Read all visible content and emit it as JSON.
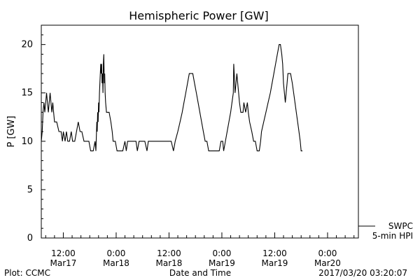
{
  "chart_data": {
    "type": "line",
    "title": "Hemispheric Power [GW]",
    "ylabel": "P [GW]",
    "xlabel": "Date and Time",
    "ylim": [
      0,
      22
    ],
    "xlim_hours": [
      -17,
      55
    ],
    "y_ticks": [
      {
        "value": 0,
        "label": "0"
      },
      {
        "value": 5,
        "label": "5"
      },
      {
        "value": 10,
        "label": "10"
      },
      {
        "value": 15,
        "label": "15"
      },
      {
        "value": 20,
        "label": "20"
      }
    ],
    "x_ticks": [
      {
        "hour": -12,
        "line1": "12:00",
        "line2": "Mar17"
      },
      {
        "hour": 0,
        "line1": "0:00",
        "line2": "Mar18"
      },
      {
        "hour": 12,
        "line1": "12:00",
        "line2": "Mar18"
      },
      {
        "hour": 24,
        "line1": "0:00",
        "line2": "Mar19"
      },
      {
        "hour": 36,
        "line1": "12:00",
        "line2": "Mar19"
      },
      {
        "hour": 48,
        "line1": "0:00",
        "line2": "Mar20"
      }
    ],
    "x_unit": "hours relative to 2017-03-18 00:00 UT",
    "grid": false,
    "series": [
      {
        "name": "SWPC",
        "color": "#000000",
        "points": [
          [
            -17,
            10
          ],
          [
            -16.8,
            11
          ],
          [
            -16.6,
            13
          ],
          [
            -16.4,
            14
          ],
          [
            -16.2,
            13
          ],
          [
            -16,
            14
          ],
          [
            -15.8,
            15
          ],
          [
            -15.6,
            14
          ],
          [
            -15.4,
            13
          ],
          [
            -15.2,
            14
          ],
          [
            -15,
            15
          ],
          [
            -14.8,
            14
          ],
          [
            -14.6,
            13
          ],
          [
            -14.4,
            14
          ],
          [
            -14.2,
            13
          ],
          [
            -14,
            12
          ],
          [
            -13.5,
            12
          ],
          [
            -13,
            11
          ],
          [
            -12.5,
            11
          ],
          [
            -12.2,
            10
          ],
          [
            -12,
            11
          ],
          [
            -11.6,
            10
          ],
          [
            -11.3,
            11
          ],
          [
            -11,
            10
          ],
          [
            -10.6,
            10
          ],
          [
            -10.2,
            11
          ],
          [
            -9.9,
            10
          ],
          [
            -9.4,
            10
          ],
          [
            -9,
            11
          ],
          [
            -8.6,
            12
          ],
          [
            -8.2,
            11
          ],
          [
            -7.8,
            11
          ],
          [
            -7.3,
            10
          ],
          [
            -6.6,
            10
          ],
          [
            -6.2,
            10
          ],
          [
            -5.8,
            9
          ],
          [
            -5.2,
            9
          ],
          [
            -4.8,
            10
          ],
          [
            -4.6,
            9
          ],
          [
            -4.4,
            12
          ],
          [
            -4.3,
            11
          ],
          [
            -4.2,
            13
          ],
          [
            -4.1,
            12
          ],
          [
            -4,
            14
          ],
          [
            -3.9,
            13
          ],
          [
            -3.8,
            15
          ],
          [
            -3.7,
            16
          ],
          [
            -3.6,
            17
          ],
          [
            -3.5,
            18
          ],
          [
            -3.4,
            17
          ],
          [
            -3.3,
            18
          ],
          [
            -3.2,
            16
          ],
          [
            -3.1,
            17
          ],
          [
            -3,
            15
          ],
          [
            -2.9,
            18
          ],
          [
            -2.8,
            19
          ],
          [
            -2.7,
            16
          ],
          [
            -2.6,
            17
          ],
          [
            -2.5,
            15
          ],
          [
            -2.4,
            14
          ],
          [
            -2.2,
            13
          ],
          [
            -1.6,
            13
          ],
          [
            -1.2,
            12
          ],
          [
            -0.9,
            11
          ],
          [
            -0.7,
            10
          ],
          [
            -0.4,
            10
          ],
          [
            -0.2,
            10
          ],
          [
            0.2,
            9
          ],
          [
            1,
            9
          ],
          [
            1.5,
            9
          ],
          [
            2,
            10
          ],
          [
            2.3,
            9
          ],
          [
            2.6,
            10
          ],
          [
            4.5,
            10
          ],
          [
            4.8,
            9
          ],
          [
            5.2,
            10
          ],
          [
            6.5,
            10
          ],
          [
            7,
            9
          ],
          [
            7.3,
            10
          ],
          [
            12.5,
            10
          ],
          [
            13,
            9
          ],
          [
            13.4,
            10
          ],
          [
            14,
            11
          ],
          [
            14.5,
            12
          ],
          [
            15,
            13
          ],
          [
            15.4,
            14
          ],
          [
            15.8,
            15
          ],
          [
            16.2,
            16
          ],
          [
            16.6,
            17
          ],
          [
            17.4,
            17
          ],
          [
            17.8,
            16
          ],
          [
            18.2,
            15
          ],
          [
            18.6,
            14
          ],
          [
            19,
            13
          ],
          [
            19.4,
            12
          ],
          [
            19.8,
            11
          ],
          [
            20.2,
            10
          ],
          [
            20.6,
            10
          ],
          [
            21,
            9
          ],
          [
            23.4,
            9
          ],
          [
            23.8,
            10
          ],
          [
            24.2,
            10
          ],
          [
            24.4,
            9
          ],
          [
            24.8,
            10
          ],
          [
            25.2,
            11
          ],
          [
            25.6,
            12
          ],
          [
            26,
            13
          ],
          [
            26.3,
            14
          ],
          [
            26.6,
            15
          ],
          [
            26.7,
            18
          ],
          [
            26.8,
            17
          ],
          [
            26.9,
            16
          ],
          [
            27,
            15
          ],
          [
            27.2,
            16
          ],
          [
            27.4,
            17
          ],
          [
            27.6,
            16
          ],
          [
            27.8,
            15
          ],
          [
            28,
            14
          ],
          [
            28.3,
            13
          ],
          [
            28.8,
            13
          ],
          [
            29,
            14
          ],
          [
            29.4,
            13
          ],
          [
            29.8,
            14
          ],
          [
            30,
            13
          ],
          [
            30.3,
            12
          ],
          [
            30.8,
            11
          ],
          [
            31.2,
            10
          ],
          [
            31.6,
            10
          ],
          [
            32,
            9
          ],
          [
            32.5,
            9
          ],
          [
            32.8,
            10
          ],
          [
            33,
            11
          ],
          [
            33.5,
            12
          ],
          [
            34,
            13
          ],
          [
            34.5,
            14
          ],
          [
            35,
            15
          ],
          [
            35.4,
            16
          ],
          [
            35.8,
            17
          ],
          [
            36.2,
            18
          ],
          [
            36.6,
            19
          ],
          [
            37,
            20
          ],
          [
            37.3,
            20
          ],
          [
            37.6,
            19
          ],
          [
            37.8,
            18
          ],
          [
            38,
            16
          ],
          [
            38.2,
            15
          ],
          [
            38.4,
            14
          ],
          [
            38.6,
            15
          ],
          [
            38.8,
            16
          ],
          [
            39,
            17
          ],
          [
            39.6,
            17
          ],
          [
            40,
            16
          ],
          [
            40.3,
            15
          ],
          [
            40.6,
            14
          ],
          [
            40.9,
            13
          ],
          [
            41.2,
            12
          ],
          [
            41.5,
            11
          ],
          [
            41.8,
            10
          ],
          [
            42,
            9
          ],
          [
            42.3,
            9
          ]
        ]
      },
      {
        "name": "5-min HPI",
        "color": "#000000",
        "points": []
      }
    ],
    "legend_placement": "bottom-right"
  },
  "footer": {
    "left": "Plot: CCMC",
    "center": "Date and Time",
    "right": "2017/03/20 03:20:07"
  }
}
